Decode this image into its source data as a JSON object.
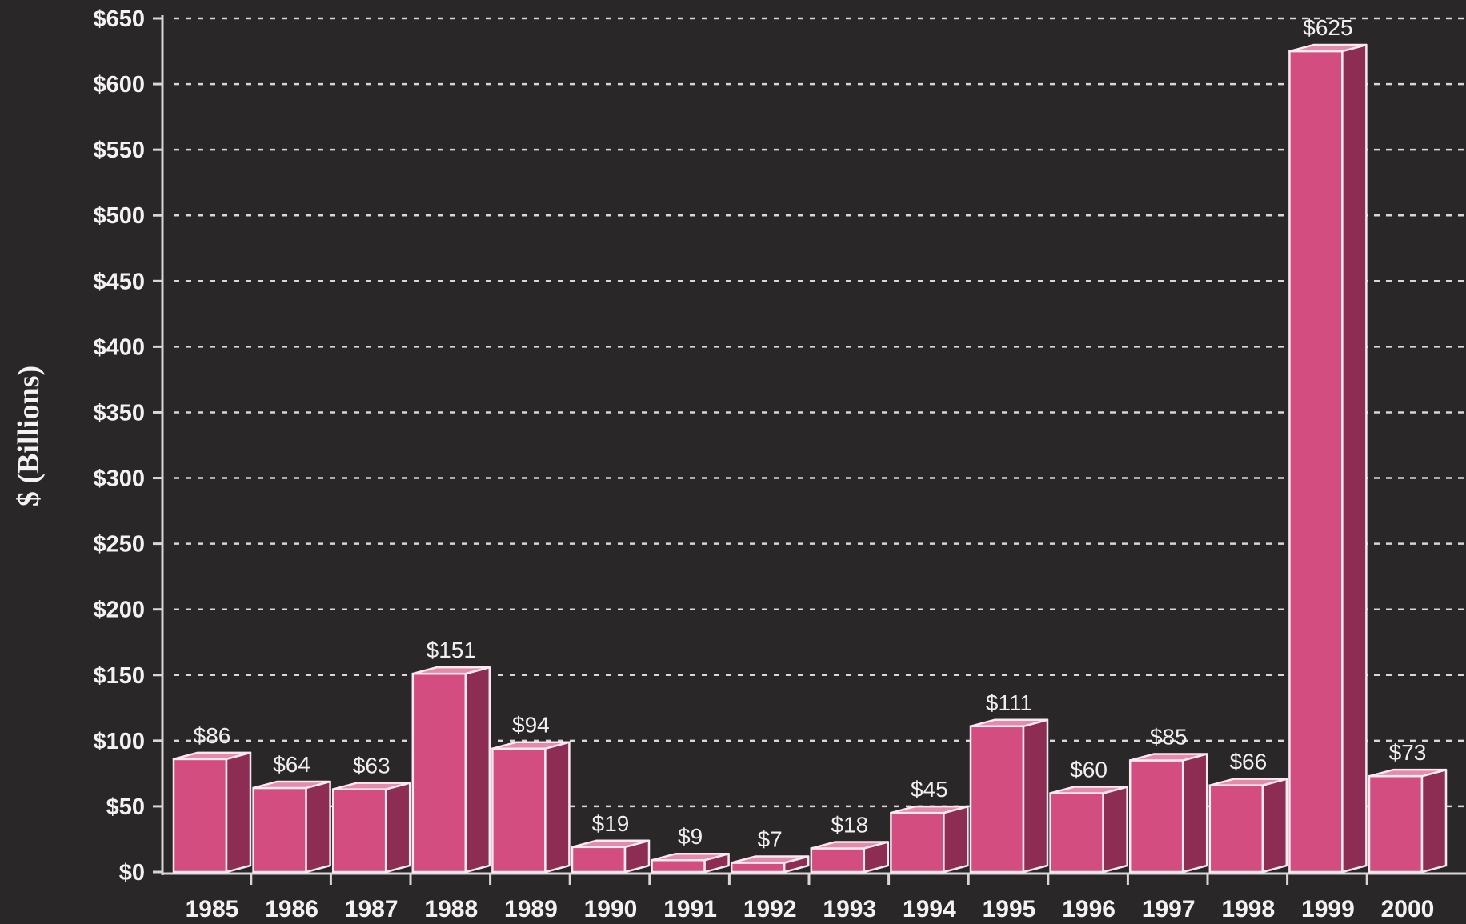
{
  "chart_data": {
    "type": "bar",
    "title": "",
    "xlabel": "",
    "ylabel": "$ (Billions)",
    "categories": [
      "1985",
      "1986",
      "1987",
      "1988",
      "1989",
      "1990",
      "1991",
      "1992",
      "1993",
      "1994",
      "1995",
      "1996",
      "1997",
      "1998",
      "1999",
      "2000"
    ],
    "values": [
      86,
      64,
      63,
      151,
      94,
      19,
      9,
      7,
      18,
      45,
      111,
      60,
      85,
      66,
      625,
      73
    ],
    "value_labels": [
      "$86",
      "$64",
      "$63",
      "$151",
      "$94",
      "$19",
      "$9",
      "$7",
      "$18",
      "$45",
      "$111",
      "$60",
      "$85",
      "$66",
      "$625",
      "$73"
    ],
    "ylim": [
      0,
      650
    ],
    "yticks": [
      0,
      50,
      100,
      150,
      200,
      250,
      300,
      350,
      400,
      450,
      500,
      550,
      600,
      650
    ],
    "ytick_labels": [
      "$0",
      "$50",
      "$100",
      "$150",
      "$200",
      "$250",
      "$300",
      "$350",
      "$400",
      "$450",
      "$500",
      "$550",
      "$600",
      "$650"
    ],
    "grid": true,
    "colors": {
      "background": "#2a2729",
      "bar_front": "#d44d80",
      "bar_side": "#8e2d54",
      "bar_top": "#e58aab",
      "bar_edge": "#f6e9ef",
      "grid": "#d9d5d8",
      "text": "#f4f1f2"
    }
  }
}
